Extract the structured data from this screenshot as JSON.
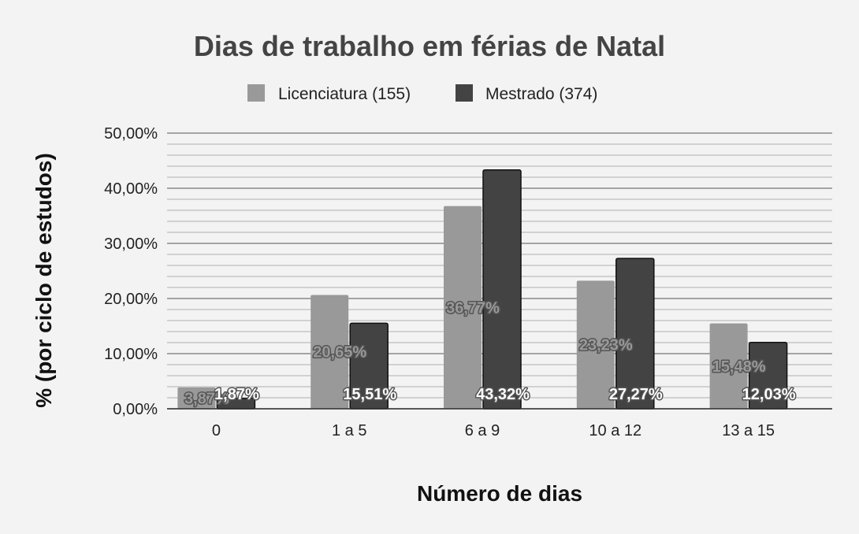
{
  "chart_data": {
    "type": "bar",
    "title": "Dias de trabalho em férias de Natal",
    "xlabel": "Número de dias",
    "ylabel": "% (por ciclo de estudos)",
    "categories": [
      "0",
      "1 a 5",
      "6 a 9",
      "10 a 12",
      "13 a 15"
    ],
    "series": [
      {
        "name": "Licenciatura (155)",
        "color": "#999999",
        "values": [
          3.87,
          20.65,
          36.77,
          23.23,
          15.48
        ],
        "labels": [
          "3,87%",
          "20,65%",
          "36,77%",
          "23,23%",
          "15,48%"
        ]
      },
      {
        "name": "Mestrado (374)",
        "color": "#434343",
        "values": [
          1.87,
          15.51,
          43.32,
          27.27,
          12.03
        ],
        "labels": [
          "1,87%",
          "15,51%",
          "43,32%",
          "27,27%",
          "12,03%"
        ]
      }
    ],
    "ylim": [
      0,
      50
    ],
    "yticks": [
      0,
      10,
      20,
      30,
      40,
      50
    ],
    "ytick_labels": [
      "0,00%",
      "10,00%",
      "20,00%",
      "30,00%",
      "40,00%",
      "50,00%"
    ],
    "grid": true,
    "legend_position": "top"
  }
}
